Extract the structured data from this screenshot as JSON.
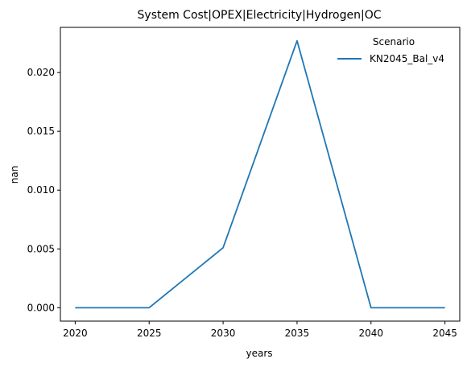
{
  "chart_data": {
    "type": "line",
    "title": "System Cost|OPEX|Electricity|Hydrogen|OC",
    "xlabel": "years",
    "ylabel": "nan",
    "x": [
      2020,
      2025,
      2030,
      2035,
      2040,
      2045
    ],
    "series": [
      {
        "name": "KN2045_Bal_v4",
        "color": "#1f77b4",
        "values": [
          0.0,
          0.0,
          0.0051,
          0.0227,
          0.0,
          0.0
        ]
      }
    ],
    "xticks": [
      "2020",
      "2025",
      "2030",
      "2035",
      "2040",
      "2045"
    ],
    "yticks": [
      "0.000",
      "0.005",
      "0.010",
      "0.015",
      "0.020"
    ],
    "xlim": [
      2019,
      2046
    ],
    "ylim": [
      -0.00114,
      0.02384
    ],
    "grid": false,
    "legend": {
      "title": "Scenario",
      "placement": "top-right"
    }
  }
}
